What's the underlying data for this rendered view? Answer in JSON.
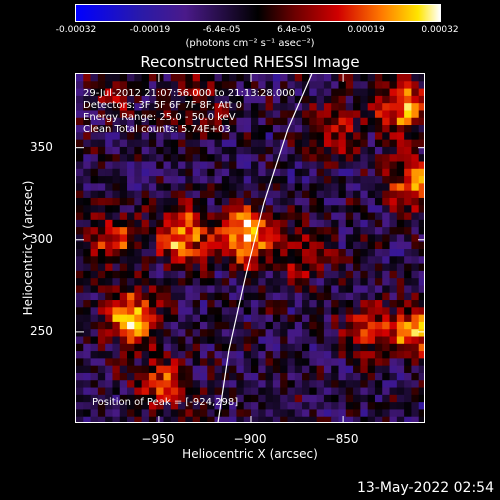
{
  "colorbar": {
    "ticks": [
      "-0.00032",
      "-0.00019",
      "-6.4e-05",
      "6.4e-05",
      "0.00019",
      "0.00032"
    ],
    "tick_values": [
      -0.00032,
      -0.00019,
      -6.4e-05,
      6.4e-05,
      0.00019,
      0.00032
    ],
    "unit_label": "(photons cm⁻² s⁻¹ asec⁻²)",
    "range": [
      -0.00032,
      0.00032
    ]
  },
  "chart_data": {
    "type": "heatmap",
    "title": "Reconstructed RHESSI Image",
    "xlabel": "Heliocentric X (arcsec)",
    "ylabel": "Heliocentric Y (arcsec)",
    "xlim": [
      -995,
      -805
    ],
    "ylim": [
      200,
      390
    ],
    "xticks": [
      -950,
      -900,
      -850
    ],
    "xtick_labels": [
      "−950",
      "−900",
      "−850"
    ],
    "yticks": [
      250,
      300,
      350
    ],
    "ytick_labels": [
      "250",
      "300",
      "350"
    ],
    "grid": false,
    "limb_curve": [
      [
        -918,
        200
      ],
      [
        -912,
        240
      ],
      [
        -903,
        280
      ],
      [
        -893,
        320
      ],
      [
        -880,
        360
      ],
      [
        -867,
        390
      ]
    ],
    "sources": [
      {
        "x": -903,
        "y": 302,
        "strength": 1.0
      },
      {
        "x": -965,
        "y": 258,
        "strength": 0.9
      },
      {
        "x": -937,
        "y": 302,
        "strength": 0.85
      },
      {
        "x": -975,
        "y": 300,
        "strength": 0.6
      },
      {
        "x": -948,
        "y": 222,
        "strength": 0.55
      },
      {
        "x": -870,
        "y": 292,
        "strength": 0.45
      },
      {
        "x": -838,
        "y": 252,
        "strength": 0.5
      },
      {
        "x": -812,
        "y": 330,
        "strength": 0.75
      },
      {
        "x": -818,
        "y": 372,
        "strength": 0.85
      },
      {
        "x": -810,
        "y": 250,
        "strength": 0.8
      },
      {
        "x": -855,
        "y": 360,
        "strength": 0.45
      },
      {
        "x": -930,
        "y": 375,
        "strength": 0.35
      },
      {
        "x": -975,
        "y": 378,
        "strength": 0.3
      }
    ],
    "peak": [
      -924,
      298
    ]
  },
  "info": {
    "line1": "29-Jul-2012 21:07:56.000 to 21:13:28.000",
    "line2": "Detectors: 3F 5F 6F 7F 8F, Att 0",
    "line3": "Energy Range: 25.0 - 50.0 keV",
    "line4": "Clean     Total counts: 5.74E+03"
  },
  "peak_label": "Position of Peak = [-924,298]",
  "date_stamp": "13-May-2022 02:54"
}
